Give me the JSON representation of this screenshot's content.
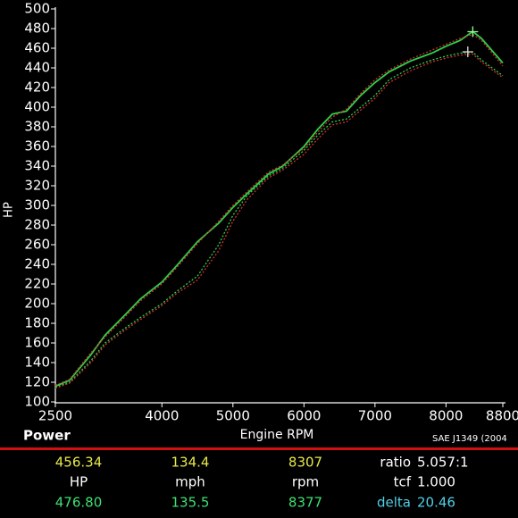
{
  "chart_data": {
    "type": "line",
    "y_label": "HP",
    "x_label": "Engine RPM",
    "corner_label": "Power",
    "note": "SAE J1349 (2004",
    "x": [
      2500,
      2700,
      3000,
      3200,
      3500,
      3700,
      4000,
      4200,
      4500,
      4800,
      5000,
      5200,
      5500,
      5700,
      6000,
      6200,
      6400,
      6600,
      6800,
      7000,
      7200,
      7500,
      7800,
      8000,
      8200,
      8377,
      8500,
      8800
    ],
    "series": [
      {
        "color": "#2fd04a",
        "style": "solid",
        "values": [
          116,
          122,
          148,
          168,
          190,
          205,
          222,
          238,
          263,
          282,
          298,
          312,
          332,
          340,
          360,
          378,
          393,
          396,
          412,
          425,
          436,
          447,
          455,
          462,
          468,
          477,
          470,
          445
        ]
      },
      {
        "color": "#d03030",
        "style": "dotted",
        "values": [
          117,
          123,
          150,
          166,
          188,
          203,
          220,
          236,
          261,
          284,
          300,
          314,
          334,
          341,
          358,
          375,
          390,
          398,
          414,
          428,
          438,
          449,
          458,
          464,
          470,
          474,
          468,
          442
        ]
      },
      {
        "color": "#2fd04a",
        "style": "dotted",
        "values": [
          115,
          120,
          142,
          160,
          176,
          186,
          200,
          212,
          228,
          260,
          290,
          310,
          330,
          338,
          356,
          372,
          385,
          388,
          400,
          412,
          428,
          440,
          448,
          452,
          455,
          456,
          448,
          432
        ]
      },
      {
        "color": "#d03030",
        "style": "dotted",
        "values": [
          114,
          119,
          140,
          158,
          174,
          184,
          198,
          210,
          224,
          254,
          284,
          306,
          328,
          336,
          352,
          368,
          382,
          385,
          397,
          409,
          425,
          437,
          446,
          450,
          453,
          454,
          446,
          430
        ]
      }
    ],
    "xlim": [
      2500,
      8800
    ],
    "xticks": [
      2500,
      4000,
      5000,
      6000,
      7000,
      8000,
      8800
    ],
    "ylim": [
      100,
      500
    ],
    "yticks": [
      100,
      120,
      140,
      160,
      180,
      200,
      220,
      240,
      260,
      280,
      300,
      320,
      340,
      360,
      380,
      400,
      420,
      440,
      460,
      480,
      500
    ]
  },
  "readout": {
    "rows": [
      [
        "456.34",
        "134.4",
        "8307",
        "ratio",
        "5.057:1"
      ],
      [
        "HP",
        "mph",
        "rpm",
        "tcf",
        "1.000"
      ],
      [
        "476.80",
        "135.5",
        "8377",
        "delta",
        "20.46"
      ]
    ]
  }
}
